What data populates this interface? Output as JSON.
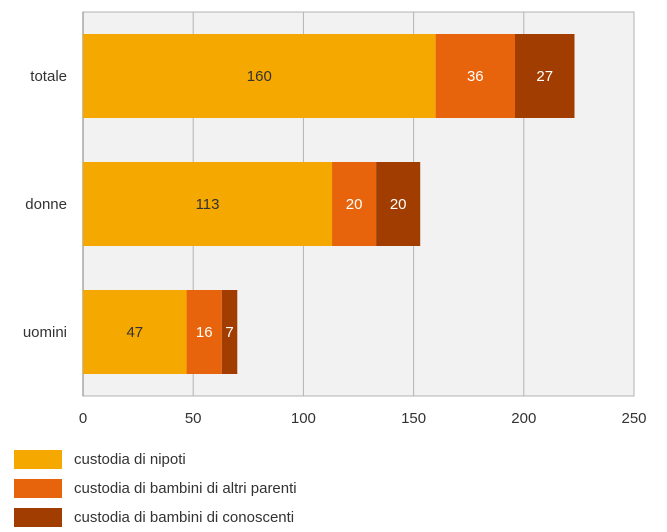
{
  "chart_data": {
    "type": "bar",
    "orientation": "horizontal",
    "stacked": true,
    "categories": [
      "totale",
      "donne",
      "uomini"
    ],
    "series": [
      {
        "name": "custodia di nipoti",
        "color": "#F5A800",
        "label_color": "#333333",
        "values": [
          160,
          113,
          47
        ]
      },
      {
        "name": "custodia di bambini di altri parenti",
        "color": "#E8640C",
        "label_color": "#ffffff",
        "values": [
          36,
          20,
          16
        ]
      },
      {
        "name": "custodia di bambini di conoscenti",
        "color": "#A13D00",
        "label_color": "#ffffff",
        "values": [
          27,
          20,
          7
        ]
      }
    ],
    "xlim": [
      0,
      250
    ],
    "xticks": [
      "0",
      "50",
      "100",
      "150",
      "200",
      "250"
    ],
    "grid": true,
    "legend_position": "bottom-left",
    "colors": {
      "plot_background": "#F2F2F2",
      "grid": "#B3B3B3",
      "axis": "#7F7F7F"
    }
  },
  "legend": {
    "items": [
      {
        "label": "custodia di nipoti",
        "color": "#F5A800"
      },
      {
        "label": "custodia di bambini di altri parenti",
        "color": "#E8640C"
      },
      {
        "label": "custodia di bambini di conoscenti",
        "color": "#A13D00"
      }
    ]
  }
}
